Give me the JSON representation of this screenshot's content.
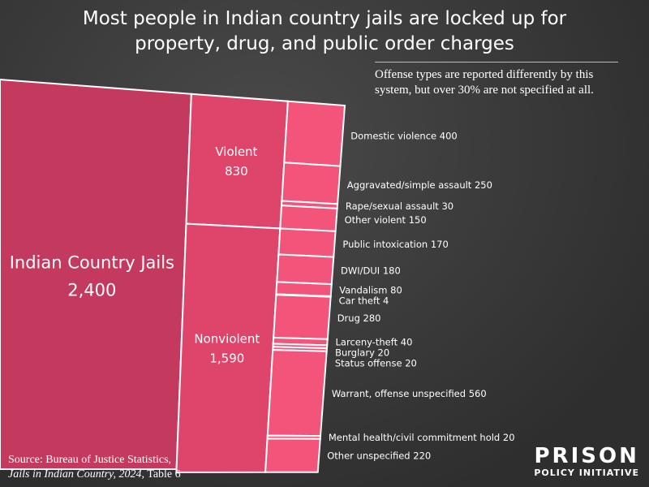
{
  "chart_data": {
    "type": "treemap",
    "title": "Most people in Indian country jails are locked up for property, drug, and public order charges",
    "note": "Offense types are reported differently by this system, but over 30% are not specified at all.",
    "total": {
      "name": "Indian Country Jails",
      "value": {
        "value": 2400,
        "label": "2,400"
      },
      "color": "#c43a5e"
    },
    "groups": [
      {
        "name": "Violent",
        "value": 830,
        "color": "#df456b",
        "items": [
          {
            "name": "Domestic violence",
            "value": 400
          },
          {
            "name": "Aggravated/simple assault",
            "value": 250
          },
          {
            "name": "Rape/sexual assault",
            "value": 30
          },
          {
            "name": "Other violent",
            "value": 150
          }
        ]
      },
      {
        "name": "Nonviolent",
        "value": {
          "value": 1590,
          "label": "1,590"
        },
        "color": "#df456b",
        "items": [
          {
            "name": "Public intoxication",
            "value": 170
          },
          {
            "name": "DWI/DUI",
            "value": 180
          },
          {
            "name": "Vandalism",
            "value": 80
          },
          {
            "name": "Car theft",
            "value": 4
          },
          {
            "name": "Drug",
            "value": 280
          },
          {
            "name": "Larceny-theft",
            "value": 40
          },
          {
            "name": "Burglary",
            "value": 20
          },
          {
            "name": "Status offense",
            "value": 20
          },
          {
            "name": "Warrant, offense unspecified",
            "value": 560
          },
          {
            "name": "Mental health/civil commitment hold",
            "value": 20
          },
          {
            "name": "Other unspecified",
            "value": 220
          }
        ]
      }
    ],
    "item_color": "#f2547a",
    "source": {
      "prefix": "Source: Bureau of Justice Statistics,",
      "publication": "Jails in Indian Country, 2024",
      "suffix": ", Table 6"
    },
    "logo": {
      "top": "PRISON",
      "bottom": "POLICY INITIATIVE"
    }
  }
}
